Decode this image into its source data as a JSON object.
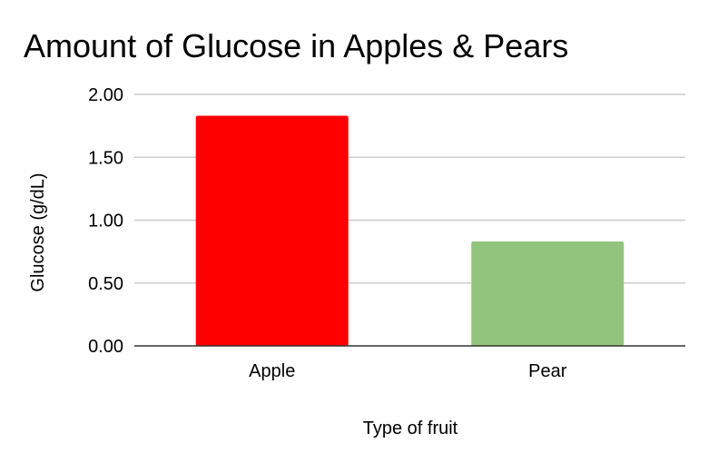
{
  "chart_data": {
    "type": "bar",
    "title": "Amount of Glucose in Apples & Pears",
    "xlabel": "Type of fruit",
    "ylabel": "Glucose (g/dL)",
    "categories": [
      "Apple",
      "Pear"
    ],
    "values": [
      1.83,
      0.83
    ],
    "bar_colors": [
      "#ff0000",
      "#93c47d"
    ],
    "ylim": [
      0,
      2
    ],
    "yticks": [
      "0.00",
      "0.50",
      "1.00",
      "1.50",
      "2.00"
    ],
    "ytick_values": [
      0,
      0.5,
      1,
      1.5,
      2
    ],
    "grid": true,
    "legend": "none",
    "gridline_color": "#cccccc",
    "baseline_color": "#333333"
  }
}
